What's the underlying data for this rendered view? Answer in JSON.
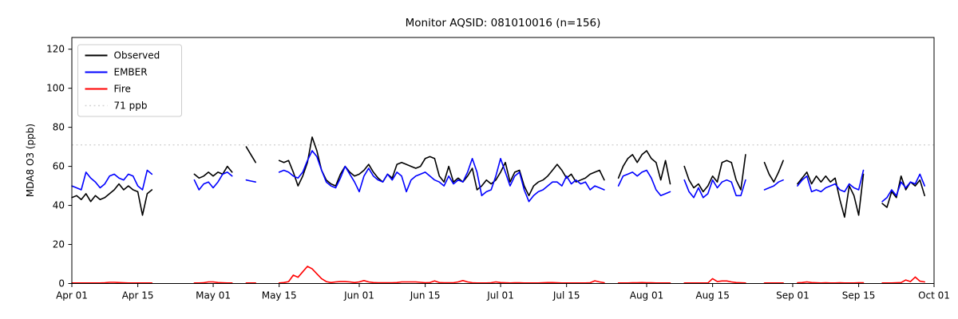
{
  "figure": {
    "title": "Monitor AQSID: 081010016 (n=156)"
  },
  "chart_data": {
    "type": "line",
    "title": "Monitor AQSID: 081010016 (n=156)",
    "xlabel": "",
    "ylabel": "MDA8 O3 (ppb)",
    "ylim": [
      0,
      126
    ],
    "yticks": [
      0,
      20,
      40,
      60,
      80,
      100,
      120
    ],
    "x_range_days": 183,
    "x_start_label": "Apr 01",
    "x_end_label": "Oct 01",
    "grid": false,
    "legend_position": "upper-left",
    "xticks": [
      {
        "day": 0,
        "label": "Apr 01"
      },
      {
        "day": 14,
        "label": "Apr 15"
      },
      {
        "day": 30,
        "label": "May 01"
      },
      {
        "day": 44,
        "label": "May 15"
      },
      {
        "day": 61,
        "label": "Jun 01"
      },
      {
        "day": 75,
        "label": "Jun 15"
      },
      {
        "day": 91,
        "label": "Jul 01"
      },
      {
        "day": 105,
        "label": "Jul 15"
      },
      {
        "day": 122,
        "label": "Aug 01"
      },
      {
        "day": 136,
        "label": "Aug 15"
      },
      {
        "day": 153,
        "label": "Sep 01"
      },
      {
        "day": 167,
        "label": "Sep 15"
      },
      {
        "day": 183,
        "label": "Oct 01"
      }
    ],
    "threshold": {
      "value": 71,
      "label": "71 ppb",
      "color": "#d3d3d3",
      "dash": "2 3.5"
    },
    "legend": [
      {
        "label": "Observed",
        "color": "#000000",
        "dash": ""
      },
      {
        "label": "EMBER",
        "color": "#0000ff",
        "dash": ""
      },
      {
        "label": "Fire",
        "color": "#ff0000",
        "dash": ""
      },
      {
        "label": "71 ppb",
        "color": "#d3d3d3",
        "dash": "2 3.5"
      }
    ],
    "series": [
      {
        "name": "Observed",
        "color": "#000000",
        "segments": [
          {
            "start_day": 0,
            "values": [
              44,
              45,
              43,
              46,
              42,
              45,
              43,
              44,
              46,
              48,
              51,
              48,
              50,
              48,
              47,
              35,
              46,
              48
            ]
          },
          {
            "start_day": 26,
            "values": [
              56,
              54,
              55,
              57,
              55,
              57,
              56,
              60,
              57
            ]
          },
          {
            "start_day": 37,
            "values": [
              70,
              66,
              62
            ]
          },
          {
            "start_day": 44,
            "values": [
              63,
              62,
              63,
              57,
              50,
              55,
              62,
              75,
              68,
              58,
              53,
              51,
              50,
              56,
              60,
              57,
              55,
              56,
              58,
              61,
              57,
              54,
              52,
              56,
              54,
              61,
              62,
              61,
              60,
              59,
              60,
              64,
              65,
              64,
              55,
              52,
              60,
              52,
              54,
              52,
              55,
              59,
              48,
              50,
              53,
              51,
              53,
              57,
              62,
              52,
              57,
              58,
              50,
              45,
              50,
              52,
              53,
              55,
              58,
              61,
              58,
              54,
              56,
              52,
              53,
              54,
              56,
              57,
              58,
              53
            ]
          },
          {
            "start_day": 116,
            "values": [
              54,
              60,
              64,
              66,
              62,
              66,
              68,
              64,
              62,
              53,
              63,
              51
            ]
          },
          {
            "start_day": 130,
            "values": [
              60,
              53,
              49,
              51,
              47,
              50,
              55,
              52,
              62,
              63,
              62,
              53,
              48,
              66
            ]
          },
          {
            "start_day": 147,
            "values": [
              62,
              56,
              52,
              57,
              63
            ]
          },
          {
            "start_day": 154,
            "values": [
              51,
              54,
              57,
              51,
              55,
              52,
              55,
              52,
              54,
              43,
              34,
              50,
              45,
              35,
              56
            ]
          },
          {
            "start_day": 172,
            "values": [
              41,
              39,
              47,
              44,
              55,
              48,
              52,
              50,
              53,
              45
            ]
          }
        ]
      },
      {
        "name": "EMBER",
        "color": "#0000ff",
        "segments": [
          {
            "start_day": 0,
            "values": [
              50,
              49,
              48,
              57,
              54,
              52,
              49,
              51,
              55,
              56,
              54,
              53,
              56,
              55,
              50,
              48,
              58,
              56
            ]
          },
          {
            "start_day": 26,
            "values": [
              53,
              48,
              51,
              52,
              49,
              52,
              56,
              57,
              55
            ]
          },
          {
            "start_day": 37,
            "values": [
              53,
              52.5,
              52
            ]
          },
          {
            "start_day": 44,
            "values": [
              57,
              58,
              57,
              55,
              54,
              57,
              63,
              68,
              65,
              58,
              52,
              50,
              49,
              54,
              60,
              56,
              52,
              47,
              55,
              59,
              55,
              53,
              52,
              56,
              53,
              57,
              55,
              47,
              53,
              55,
              56,
              57,
              55,
              53,
              52,
              50,
              55,
              51,
              53,
              52,
              57,
              64,
              57,
              45,
              47,
              48,
              55,
              64,
              57,
              50,
              55,
              57,
              48,
              42,
              45,
              47,
              48,
              50,
              52,
              52,
              50,
              55,
              51,
              53,
              51,
              52,
              48,
              50,
              49,
              48
            ]
          },
          {
            "start_day": 116,
            "values": [
              50,
              55,
              56,
              57,
              55,
              57,
              58,
              54,
              48,
              45,
              46,
              47
            ]
          },
          {
            "start_day": 130,
            "values": [
              53,
              47,
              44,
              49,
              44,
              46,
              53,
              49,
              52,
              53,
              52,
              45,
              45,
              53
            ]
          },
          {
            "start_day": 147,
            "values": [
              48,
              49,
              50,
              52,
              53
            ]
          },
          {
            "start_day": 154,
            "values": [
              50,
              53,
              55,
              47,
              48,
              47,
              49,
              50,
              51,
              48,
              47,
              51,
              49,
              48,
              58
            ]
          },
          {
            "start_day": 172,
            "values": [
              42,
              44,
              48,
              45,
              52,
              49,
              52,
              51,
              56,
              50
            ]
          }
        ]
      },
      {
        "name": "Fire",
        "color": "#ff0000",
        "segments": [
          {
            "start_day": 0,
            "values": [
              0.3,
              0.3,
              0.3,
              0.3,
              0.3,
              0.3,
              0.3,
              0.4,
              0.6,
              0.6,
              0.5,
              0.4,
              0.3,
              0.3,
              0.3,
              0.3,
              0.3,
              0.3
            ]
          },
          {
            "start_day": 26,
            "values": [
              0.3,
              0.3,
              0.4,
              0.8,
              0.8,
              0.5,
              0.4,
              0.3,
              0.3
            ]
          },
          {
            "start_day": 37,
            "values": [
              0.3,
              0.3,
              0.3
            ]
          },
          {
            "start_day": 44,
            "values": [
              0.3,
              0.5,
              1.0,
              4.3,
              3.2,
              6.0,
              8.8,
              7.5,
              5.0,
              2.5,
              1.0,
              0.5,
              0.8,
              1.0,
              1.0,
              0.8,
              0.5,
              0.8,
              1.5,
              0.8,
              0.5,
              0.4,
              0.4,
              0.4,
              0.4,
              0.5,
              0.8,
              0.8,
              0.8,
              0.8,
              0.6,
              0.4,
              0.5,
              1.3,
              0.5,
              0.4,
              0.4,
              0.4,
              0.8,
              1.5,
              0.8,
              0.4,
              0.3,
              0.3,
              0.3,
              0.4,
              0.8,
              0.5,
              0.4,
              0.3,
              0.4,
              0.4,
              0.3,
              0.3,
              0.3,
              0.3,
              0.4,
              0.5,
              0.5,
              0.4,
              0.3,
              0.3,
              0.3,
              0.3,
              0.3,
              0.3,
              0.4,
              1.4,
              0.8,
              0.4
            ]
          },
          {
            "start_day": 116,
            "values": [
              0.3,
              0.3,
              0.3,
              0.4,
              0.4,
              0.5,
              0.4,
              0.4,
              0.3,
              0.3,
              0.3,
              0.3
            ]
          },
          {
            "start_day": 130,
            "values": [
              0.3,
              0.3,
              0.3,
              0.3,
              0.3,
              0.3,
              2.5,
              1.0,
              1.3,
              1.3,
              0.8,
              0.5,
              0.4,
              0.3
            ]
          },
          {
            "start_day": 147,
            "values": [
              0.3,
              0.3,
              0.3,
              0.3,
              0.3
            ]
          },
          {
            "start_day": 154,
            "values": [
              0.4,
              0.5,
              0.8,
              0.5,
              0.4,
              0.3,
              0.4,
              0.3,
              0.3,
              0.4,
              0.3,
              0.3,
              0.3,
              0.4,
              0.4
            ]
          },
          {
            "start_day": 172,
            "values": [
              0.3,
              0.3,
              0.3,
              0.4,
              0.5,
              1.8,
              1.0,
              3.3,
              1.2,
              0.8
            ]
          }
        ]
      }
    ]
  }
}
